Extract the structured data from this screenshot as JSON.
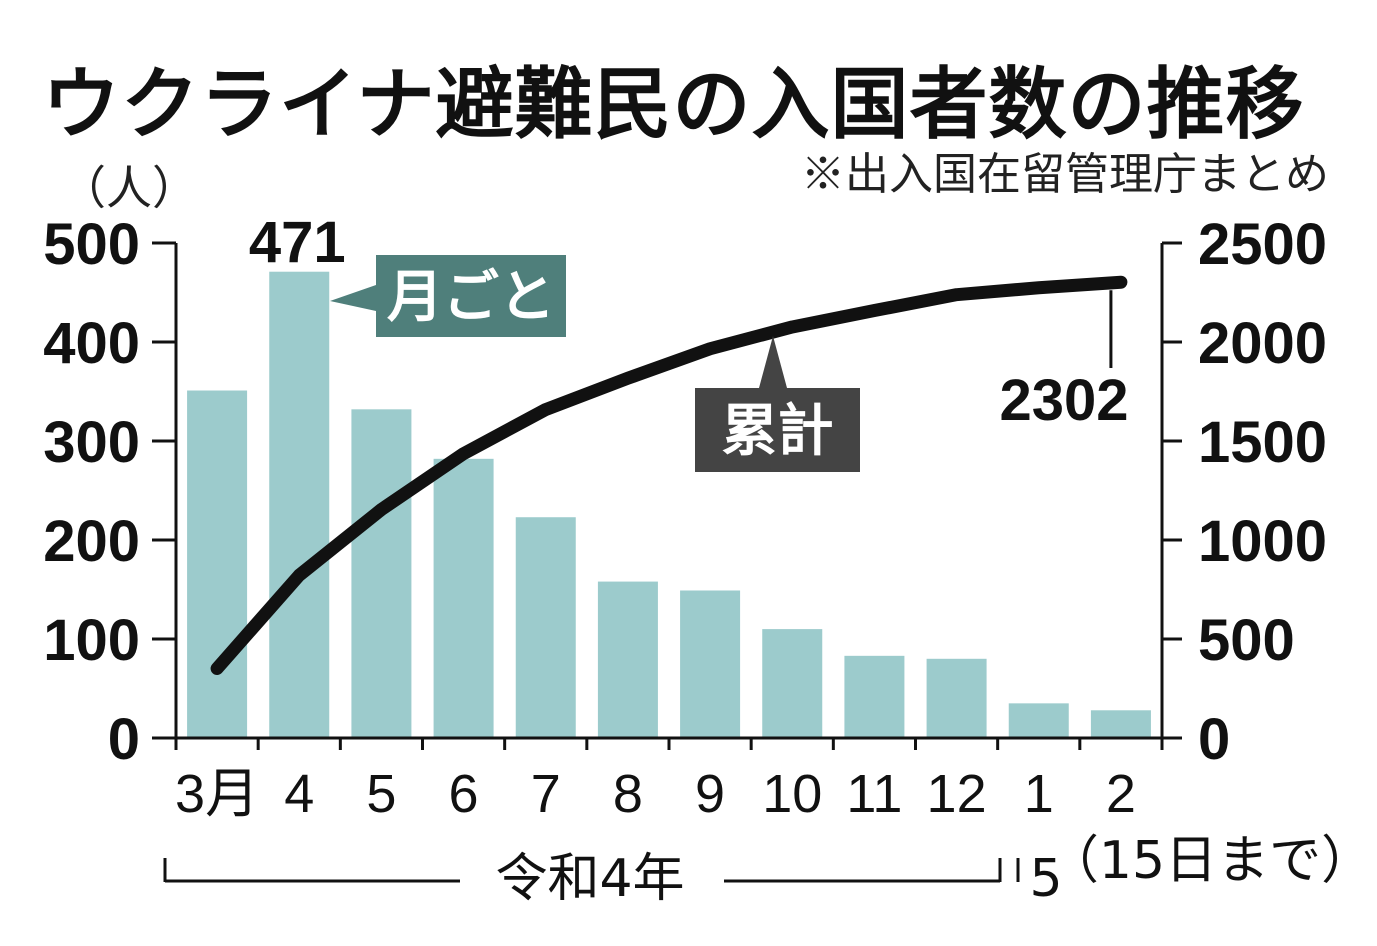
{
  "header": {
    "title": "ウクライナ避難民の入国者数の推移",
    "source": "※出入国在留管理庁まとめ",
    "unit": "（人）"
  },
  "colors": {
    "bar": "#9ccbcc",
    "line": "#111111",
    "monthly_tag": "#4f7f7b",
    "cumulative_tag": "#444444"
  },
  "chart_data": {
    "type": "bar",
    "categories": [
      "3月",
      "4",
      "5",
      "6",
      "7",
      "8",
      "9",
      "10",
      "11",
      "12",
      "1",
      "2"
    ],
    "y_left": {
      "min": 0,
      "max": 500,
      "ticks": [
        "0",
        "100",
        "200",
        "300",
        "400",
        "500"
      ]
    },
    "y_right": {
      "min": 0,
      "max": 2500,
      "ticks": [
        "0",
        "500",
        "1000",
        "1500",
        "2000",
        "2500"
      ]
    },
    "series": [
      {
        "name": "月ごと",
        "type": "bar",
        "axis": "left",
        "values": [
          351,
          471,
          332,
          282,
          223,
          158,
          149,
          110,
          83,
          80,
          35,
          28
        ]
      },
      {
        "name": "累計",
        "type": "line",
        "axis": "right",
        "values": [
          351,
          822,
          1154,
          1436,
          1659,
          1817,
          1966,
          2076,
          2159,
          2239,
          2274,
          2302
        ]
      }
    ],
    "annotations": {
      "peak_bar": "471",
      "last_cumulative": "2302"
    },
    "x_groups": [
      {
        "label": "令和4年",
        "from": "3月",
        "to": "12"
      },
      {
        "label": "5",
        "from": "1",
        "to": "2"
      }
    ],
    "x_note": "（15日まで）",
    "grid": false,
    "legend": "inline labels"
  }
}
